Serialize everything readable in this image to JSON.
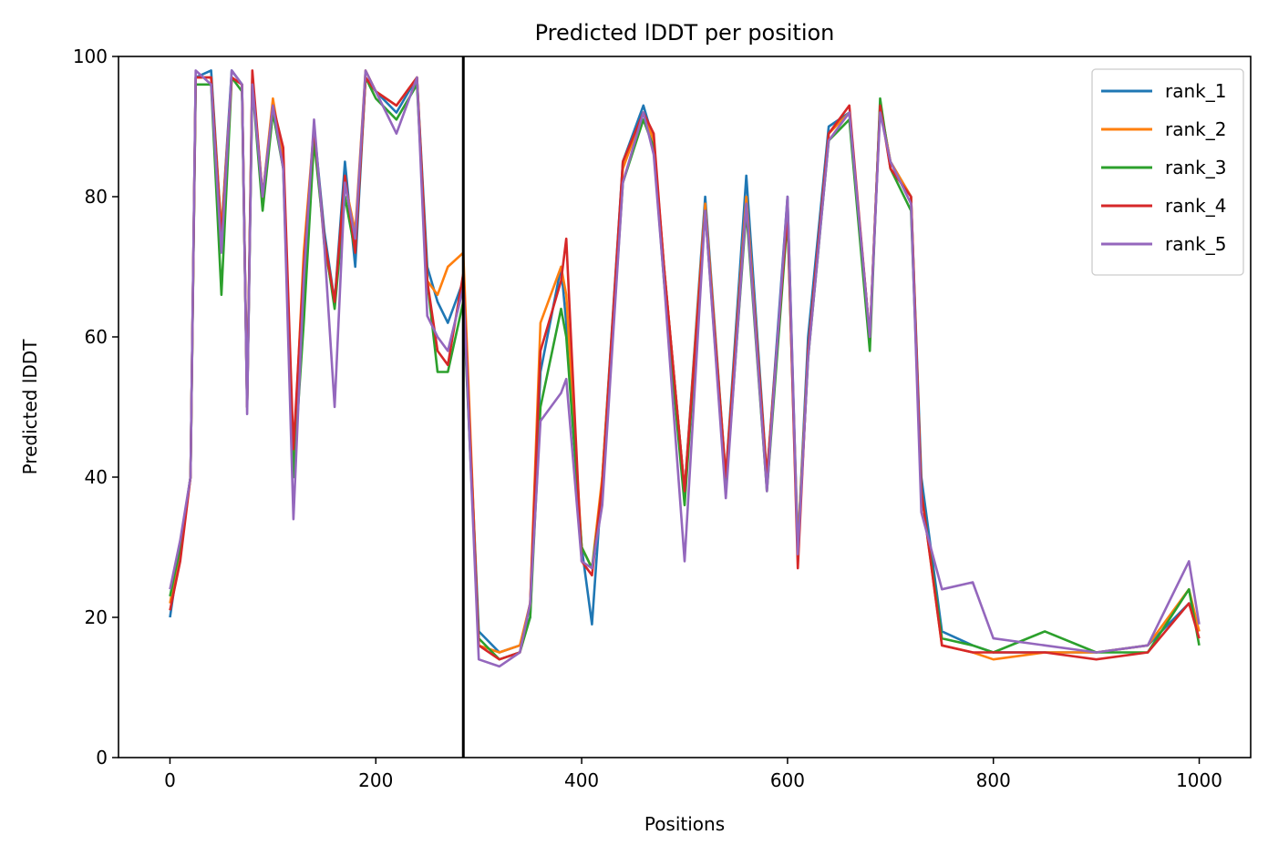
{
  "chart_data": {
    "type": "line",
    "title": "Predicted lDDT per position",
    "xlabel": "Positions",
    "ylabel": "Predicted lDDT",
    "xlim": [
      -50,
      1050
    ],
    "ylim": [
      0,
      100
    ],
    "xticks": [
      0,
      200,
      400,
      600,
      800,
      1000
    ],
    "yticks": [
      0,
      20,
      40,
      60,
      80,
      100
    ],
    "grid": false,
    "legend_position": "top-right",
    "vline": {
      "x": 285,
      "color": "#000000"
    },
    "series": [
      {
        "name": "rank_1",
        "color": "#1f77b4",
        "x": [
          0,
          10,
          20,
          25,
          40,
          50,
          60,
          70,
          75,
          80,
          90,
          100,
          110,
          120,
          130,
          140,
          150,
          160,
          170,
          180,
          190,
          200,
          220,
          240,
          250,
          260,
          270,
          285,
          300,
          320,
          340,
          350,
          360,
          380,
          385,
          400,
          410,
          420,
          440,
          460,
          470,
          480,
          500,
          520,
          540,
          560,
          580,
          600,
          610,
          620,
          640,
          660,
          680,
          690,
          700,
          720,
          730,
          750,
          780,
          800,
          850,
          900,
          950,
          990,
          1000
        ],
        "y": [
          20,
          30,
          40,
          97,
          98,
          75,
          98,
          96,
          50,
          97,
          80,
          93,
          85,
          40,
          65,
          90,
          75,
          65,
          85,
          70,
          97,
          95,
          92,
          97,
          70,
          65,
          62,
          68,
          18,
          15,
          16,
          20,
          55,
          70,
          62,
          30,
          19,
          40,
          85,
          93,
          88,
          70,
          38,
          80,
          40,
          83,
          40,
          80,
          30,
          60,
          90,
          92,
          60,
          93,
          85,
          80,
          40,
          18,
          16,
          15,
          15,
          15,
          16,
          22,
          18
        ]
      },
      {
        "name": "rank_2",
        "color": "#ff7f0e",
        "x": [
          0,
          10,
          20,
          25,
          40,
          50,
          60,
          70,
          75,
          80,
          90,
          100,
          110,
          120,
          130,
          140,
          150,
          160,
          170,
          180,
          190,
          200,
          220,
          240,
          250,
          260,
          270,
          285,
          300,
          320,
          340,
          350,
          360,
          380,
          385,
          400,
          410,
          420,
          440,
          460,
          470,
          480,
          500,
          520,
          540,
          560,
          580,
          600,
          610,
          620,
          640,
          660,
          680,
          690,
          700,
          720,
          730,
          750,
          780,
          800,
          850,
          900,
          950,
          990,
          1000
        ],
        "y": [
          22,
          30,
          40,
          97,
          97,
          75,
          97,
          96,
          50,
          97,
          80,
          94,
          85,
          42,
          72,
          90,
          73,
          65,
          82,
          75,
          98,
          95,
          93,
          97,
          68,
          66,
          70,
          72,
          16,
          15,
          16,
          22,
          62,
          70,
          66,
          30,
          27,
          40,
          84,
          92,
          88,
          70,
          38,
          79,
          40,
          80,
          40,
          78,
          30,
          58,
          89,
          92,
          60,
          93,
          85,
          80,
          38,
          16,
          15,
          14,
          15,
          15,
          16,
          24,
          18
        ]
      },
      {
        "name": "rank_3",
        "color": "#2ca02c",
        "x": [
          0,
          10,
          20,
          25,
          40,
          50,
          60,
          70,
          75,
          80,
          90,
          100,
          110,
          120,
          130,
          140,
          150,
          160,
          170,
          180,
          190,
          200,
          220,
          240,
          250,
          260,
          270,
          285,
          300,
          320,
          340,
          350,
          360,
          380,
          385,
          400,
          410,
          420,
          440,
          460,
          470,
          480,
          500,
          520,
          540,
          560,
          580,
          600,
          610,
          620,
          640,
          660,
          680,
          690,
          700,
          720,
          730,
          750,
          780,
          800,
          850,
          900,
          950,
          990,
          1000
        ],
        "y": [
          23,
          30,
          40,
          96,
          96,
          66,
          97,
          95,
          50,
          96,
          78,
          92,
          84,
          40,
          62,
          88,
          74,
          64,
          80,
          72,
          97,
          94,
          91,
          96,
          68,
          55,
          55,
          65,
          17,
          14,
          15,
          20,
          50,
          64,
          60,
          30,
          27,
          38,
          82,
          91,
          87,
          68,
          36,
          78,
          38,
          78,
          38,
          77,
          29,
          57,
          88,
          91,
          58,
          94,
          84,
          78,
          38,
          17,
          16,
          15,
          18,
          15,
          15,
          24,
          16
        ]
      },
      {
        "name": "rank_4",
        "color": "#d62728",
        "x": [
          0,
          10,
          20,
          25,
          40,
          50,
          60,
          70,
          75,
          80,
          90,
          100,
          110,
          120,
          130,
          140,
          150,
          160,
          170,
          180,
          190,
          200,
          220,
          240,
          250,
          260,
          270,
          285,
          300,
          320,
          340,
          350,
          360,
          380,
          385,
          400,
          410,
          420,
          440,
          460,
          470,
          480,
          500,
          520,
          540,
          560,
          580,
          600,
          610,
          620,
          640,
          660,
          680,
          690,
          700,
          720,
          730,
          750,
          780,
          800,
          850,
          900,
          950,
          990,
          1000
        ],
        "y": [
          21,
          28,
          40,
          97,
          97,
          74,
          97,
          96,
          50,
          98,
          80,
          93,
          87,
          44,
          70,
          90,
          74,
          65,
          83,
          72,
          97,
          95,
          93,
          97,
          68,
          58,
          56,
          69,
          16,
          14,
          15,
          22,
          58,
          68,
          74,
          28,
          26,
          39,
          85,
          92,
          89,
          70,
          38,
          78,
          40,
          79,
          40,
          78,
          27,
          58,
          89,
          93,
          60,
          93,
          84,
          80,
          38,
          16,
          15,
          15,
          15,
          14,
          15,
          22,
          17
        ]
      },
      {
        "name": "rank_5",
        "color": "#9467bd",
        "x": [
          0,
          10,
          20,
          25,
          40,
          50,
          60,
          70,
          75,
          80,
          90,
          100,
          110,
          120,
          130,
          140,
          150,
          160,
          170,
          180,
          190,
          200,
          220,
          240,
          250,
          260,
          270,
          285,
          300,
          320,
          340,
          350,
          360,
          380,
          385,
          400,
          410,
          420,
          440,
          460,
          470,
          480,
          500,
          520,
          540,
          560,
          580,
          600,
          610,
          620,
          640,
          660,
          680,
          690,
          700,
          720,
          730,
          750,
          780,
          800,
          850,
          900,
          950,
          990,
          1000
        ],
        "y": [
          24,
          31,
          40,
          98,
          96,
          72,
          98,
          96,
          49,
          96,
          80,
          93,
          84,
          34,
          68,
          91,
          73,
          50,
          82,
          74,
          98,
          95,
          89,
          97,
          63,
          60,
          58,
          67,
          14,
          13,
          15,
          22,
          48,
          52,
          54,
          28,
          27,
          36,
          82,
          92,
          86,
          68,
          28,
          78,
          37,
          79,
          38,
          80,
          29,
          57,
          88,
          92,
          60,
          92,
          85,
          79,
          35,
          24,
          25,
          17,
          16,
          15,
          16,
          28,
          19
        ]
      }
    ]
  }
}
